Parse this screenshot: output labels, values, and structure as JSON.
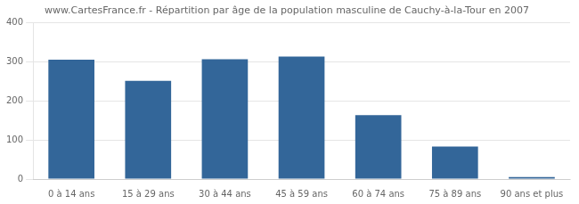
{
  "chart_data": {
    "type": "bar",
    "title": "www.CartesFrance.fr - Répartition par âge de la population masculine de Cauchy-à-la-Tour en 2007",
    "categories": [
      "0 à 14 ans",
      "15 à 29 ans",
      "30 à 44 ans",
      "45 à 59 ans",
      "60 à 74 ans",
      "75 à 89 ans",
      "90 ans et plus"
    ],
    "values": [
      305,
      251,
      306,
      313,
      163,
      83,
      5
    ],
    "color": "#336699",
    "ylim": [
      0,
      400
    ],
    "yticks": [
      0,
      100,
      200,
      300,
      400
    ],
    "grid": true
  }
}
